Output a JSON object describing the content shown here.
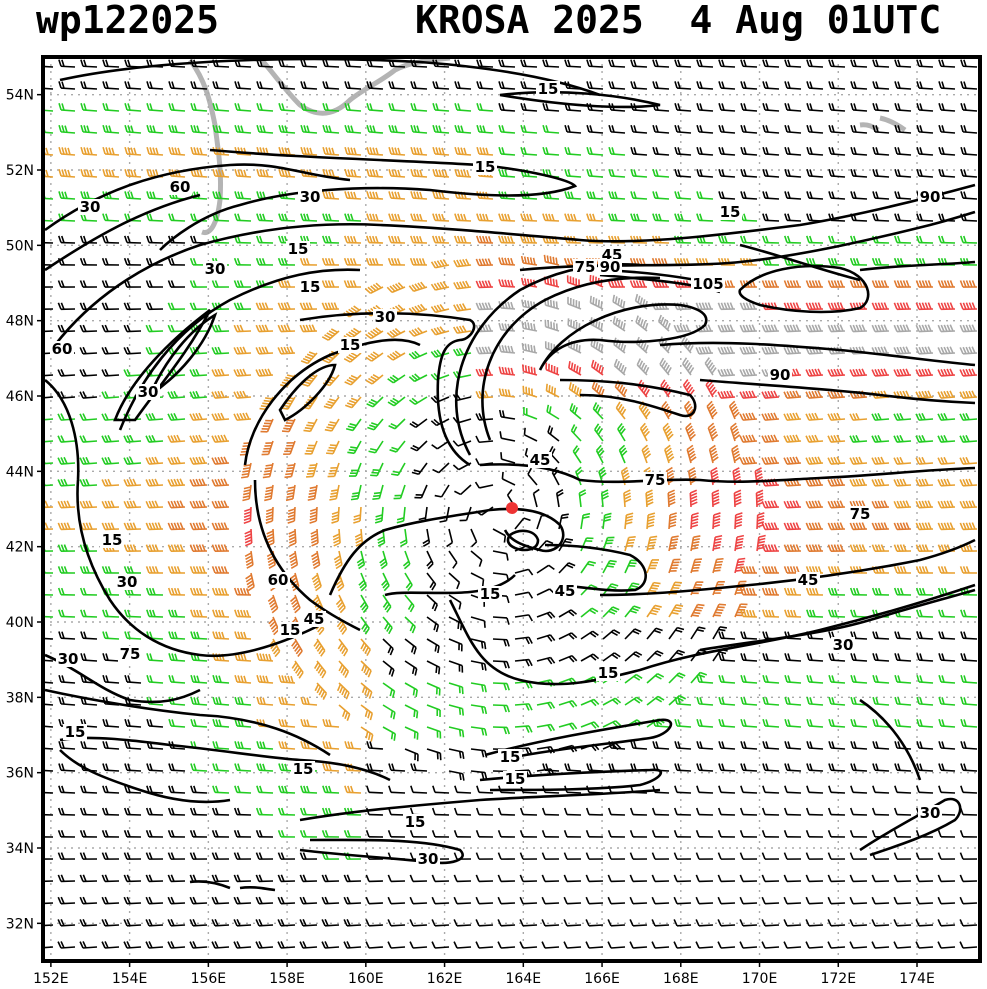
{
  "header": {
    "left": "wp122025",
    "right": "KROSA 2025  4 Aug 01UTC"
  },
  "lat_labels": [
    "54N",
    "52N",
    "50N",
    "48N",
    "46N",
    "44N",
    "42N",
    "40N",
    "38N",
    "36N",
    "34N",
    "32N"
  ],
  "lon_labels": [
    "152E",
    "154E",
    "156E",
    "158E",
    "160E",
    "162E",
    "164E",
    "166E",
    "168E",
    "170E",
    "172E",
    "174E"
  ],
  "contour_labels": [
    "15",
    "15",
    "15",
    "15",
    "15",
    "15",
    "15",
    "15",
    "15",
    "15",
    "15",
    "15",
    "15",
    "15",
    "15",
    "30",
    "30",
    "30",
    "30",
    "30",
    "30",
    "30",
    "30",
    "30",
    "30",
    "45",
    "45",
    "45",
    "45",
    "45",
    "60",
    "60",
    "60",
    "75",
    "75",
    "75",
    "75",
    "90",
    "90",
    "90",
    "105"
  ],
  "map": {
    "extent": {
      "lon": [
        151.8,
        175.6
      ],
      "lat": [
        31,
        55
      ]
    },
    "storm_center": {
      "lon": 163.4,
      "lat": 42.8
    },
    "colors": {
      "contour": "#000000",
      "coast": "#b4b4b4",
      "grid": "#aaaaaa",
      "barb_calm": "#000000",
      "barb_green": "#22cc22",
      "barb_orange": "#e8a030",
      "barb_dark_orange": "#e07a30",
      "barb_red": "#ee4444",
      "barb_gray": "#a8a8a8",
      "storm": "#ee3333"
    }
  }
}
